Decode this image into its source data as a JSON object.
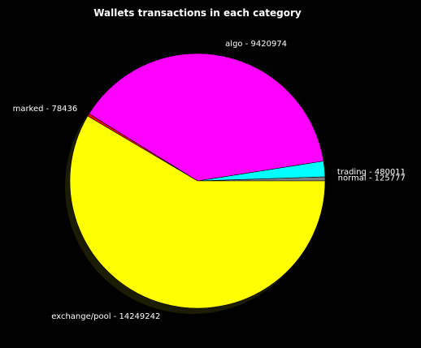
{
  "chart_data": {
    "type": "pie",
    "title": "Wallets transactions in each category",
    "slices": [
      {
        "name": "normal",
        "value": 125777,
        "label": "normal - 125777",
        "color": "#808080"
      },
      {
        "name": "trading",
        "value": 480011,
        "label": "trading - 480011",
        "color": "#00ffff"
      },
      {
        "name": "algo",
        "value": 9420974,
        "label": "algo - 9420974",
        "color": "#ff00ff"
      },
      {
        "name": "marked",
        "value": 78436,
        "label": "marked - 78436",
        "color": "#ff0000"
      },
      {
        "name": "exchange/pool",
        "value": 14249242,
        "label": "exchange/pool - 14249242",
        "color": "#ffff00"
      }
    ],
    "start_angle_deg": 0,
    "direction": "counterclockwise",
    "shadow": true,
    "edge_color": "#000000",
    "background": "#000000"
  }
}
